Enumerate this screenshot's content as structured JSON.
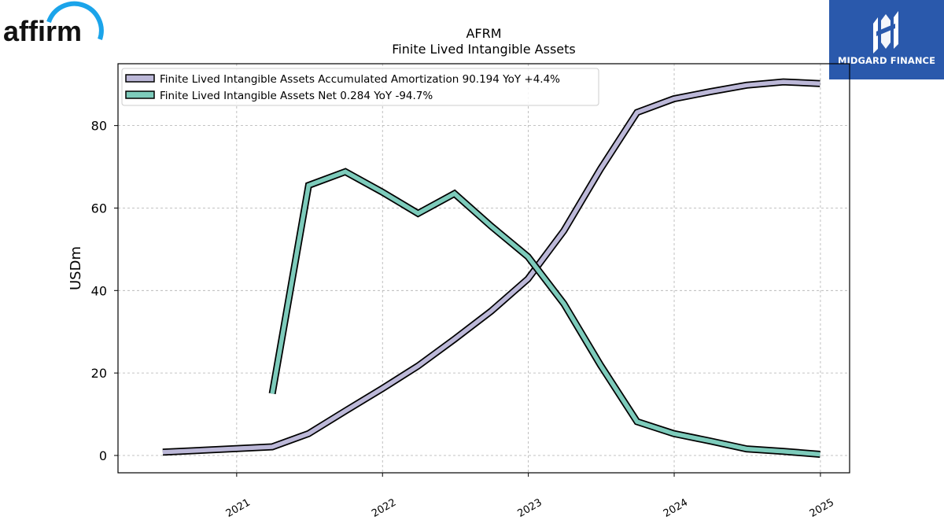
{
  "branding": {
    "affirm_wordmark": "affirm",
    "midgard_name": "MIDGARD FINANCE",
    "midgard_color": "#2a59ac",
    "affirm_arc_color": "#1ba4ea"
  },
  "chart_data": {
    "type": "line",
    "title": "AFRM",
    "subtitle": "Finite Lived Intangible Assets",
    "ylabel": "USDm",
    "xlabel": "",
    "x_ticks": [
      "2021",
      "2022",
      "2023",
      "2024",
      "2025"
    ],
    "y_ticks": [
      0,
      20,
      40,
      60,
      80
    ],
    "ylim": [
      -4.2,
      95
    ],
    "xlim": [
      "2020-03-10",
      "2025-03-15"
    ],
    "grid": true,
    "legend_position": "upper left",
    "series": [
      {
        "name": "Finite Lived Intangible Assets Accumulated Amortization",
        "legend_label": "Finite Lived Intangible Assets Accumulated Amortization  90.194 YoY +4.4%",
        "color": "#bcb8d8",
        "points": [
          [
            "2020-06-30",
            0.8
          ],
          [
            "2021-03-31",
            2.1
          ],
          [
            "2021-06-30",
            5.3
          ],
          [
            "2021-09-30",
            10.8
          ],
          [
            "2021-12-31",
            16.2
          ],
          [
            "2022-03-31",
            21.7
          ],
          [
            "2022-06-30",
            28.2
          ],
          [
            "2022-09-30",
            35.0
          ],
          [
            "2022-12-31",
            42.8
          ],
          [
            "2023-03-31",
            54.5
          ],
          [
            "2023-06-30",
            69.4
          ],
          [
            "2023-09-30",
            83.2
          ],
          [
            "2023-12-31",
            86.5
          ],
          [
            "2024-03-31",
            88.2
          ],
          [
            "2024-06-30",
            89.8
          ],
          [
            "2024-09-30",
            90.6
          ],
          [
            "2024-12-31",
            90.194
          ]
        ]
      },
      {
        "name": "Finite Lived Intangible Assets Net",
        "legend_label": "Finite Lived Intangible Assets Net  0.284 YoY -94.7%",
        "color": "#7dcbbb",
        "points": [
          [
            "2021-03-31",
            15.0
          ],
          [
            "2021-06-30",
            65.5
          ],
          [
            "2021-09-30",
            68.8
          ],
          [
            "2021-12-31",
            63.9
          ],
          [
            "2022-03-31",
            58.7
          ],
          [
            "2022-06-30",
            63.5
          ],
          [
            "2022-09-30",
            55.6
          ],
          [
            "2022-12-31",
            48.2
          ],
          [
            "2023-03-31",
            36.8
          ],
          [
            "2023-06-30",
            22.0
          ],
          [
            "2023-09-30",
            8.2
          ],
          [
            "2023-12-31",
            5.3
          ],
          [
            "2024-03-31",
            3.5
          ],
          [
            "2024-06-30",
            1.6
          ],
          [
            "2024-09-30",
            1.0
          ],
          [
            "2024-12-31",
            0.284
          ]
        ]
      }
    ]
  }
}
